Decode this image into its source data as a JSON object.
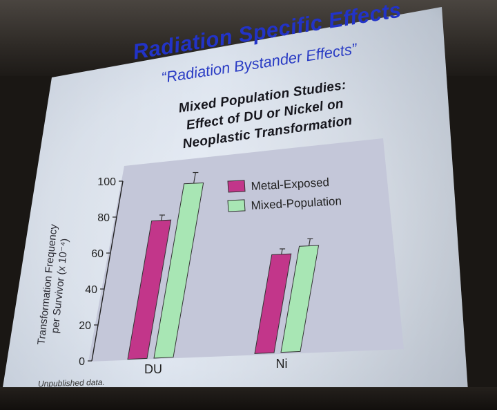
{
  "slide": {
    "title": "Radiation Specific Effects",
    "subtitle": "“Radiation Bystander Effects”",
    "heading_lines": [
      "Mixed Population Studies:",
      "Effect of DU or Nickel on",
      "Neoplastic Transformation"
    ],
    "note": "Unpublished data."
  },
  "chart_data": {
    "type": "bar",
    "categories": [
      "DU",
      "Ni"
    ],
    "series": [
      {
        "name": "Metal-Exposed",
        "values": [
          77,
          55
        ],
        "errors": [
          3,
          3
        ]
      },
      {
        "name": "Mixed-Population",
        "values": [
          97,
          59
        ],
        "errors": [
          6,
          4
        ]
      }
    ],
    "ylabel_lines": [
      "Transformation Frequency",
      "per Survivor (x 10⁻⁴)"
    ],
    "yticks": [
      0,
      20,
      40,
      60,
      80,
      100
    ],
    "ylim": [
      0,
      100
    ],
    "grid": false,
    "legend_position": "top-right",
    "colors": {
      "Metal-Exposed": "#c2368a",
      "Mixed-Population": "#a8e6b4"
    }
  }
}
